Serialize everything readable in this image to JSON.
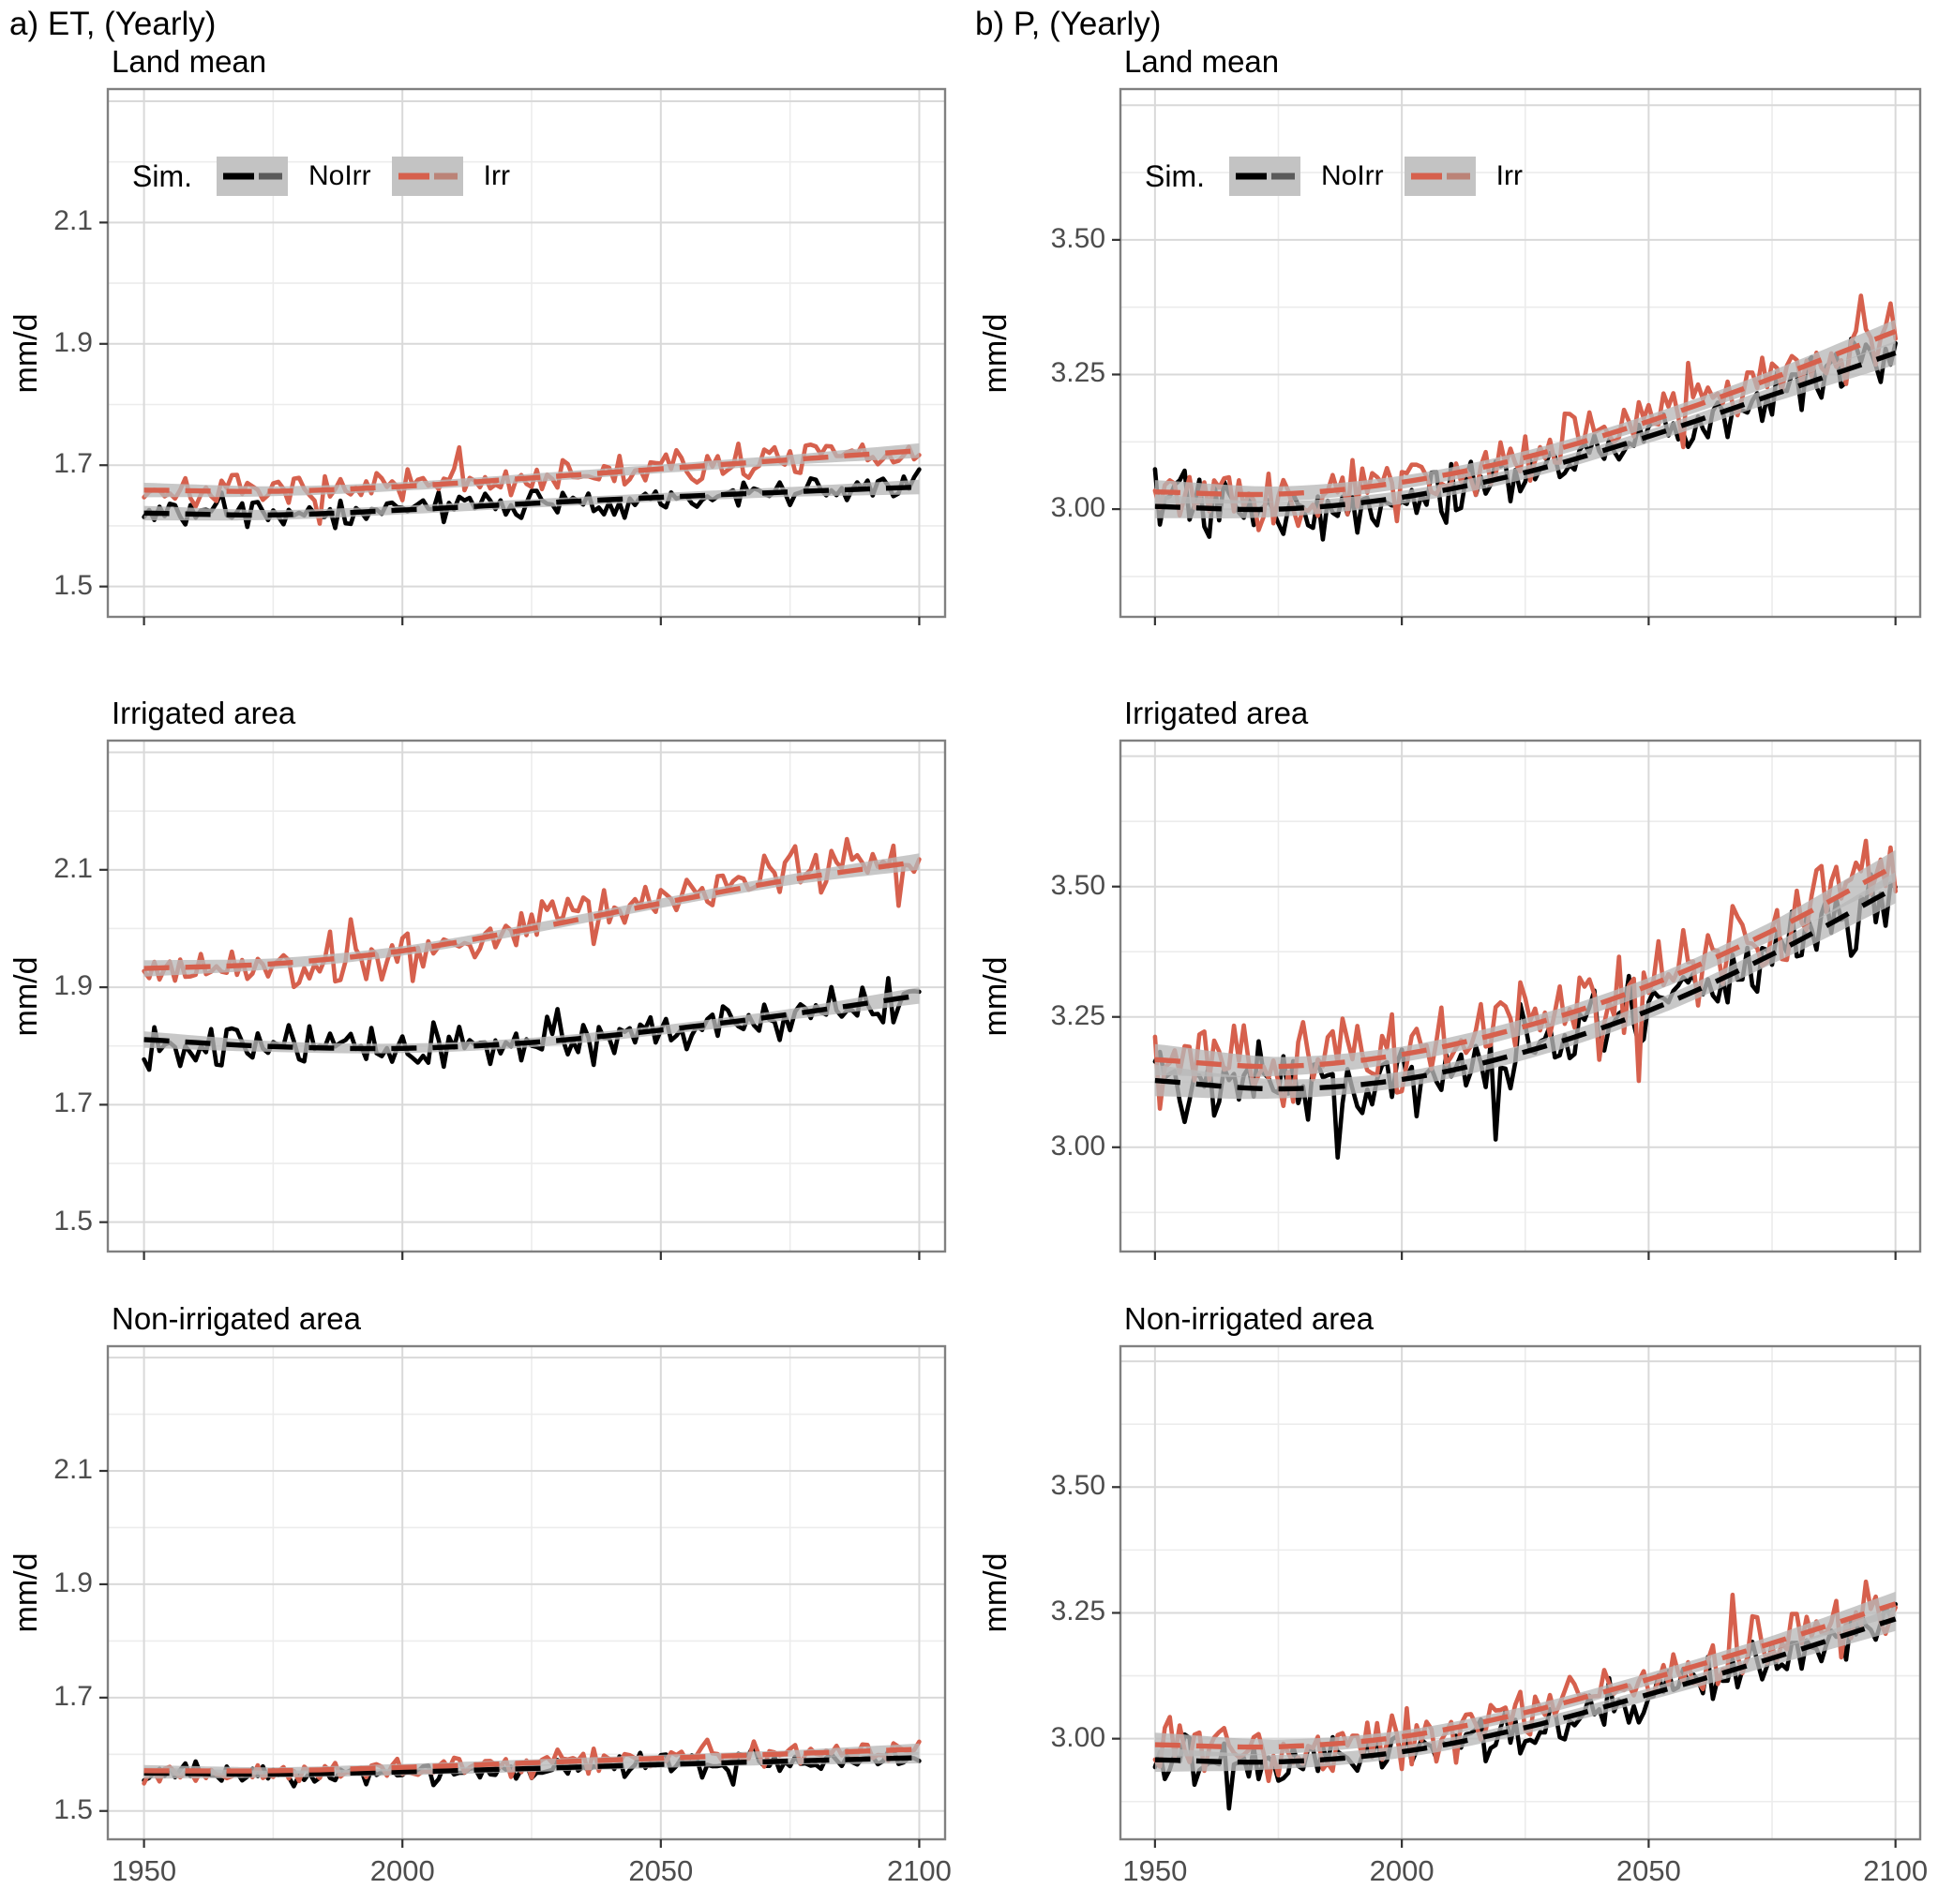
{
  "figure": {
    "column_titles": [
      "a) ET, (Yearly)",
      "b) P, (Yearly)"
    ],
    "y_axis_label": "mm/d",
    "legend": {
      "title": "Sim.",
      "entries": [
        {
          "label": "NoIrr",
          "line_color": "#000000",
          "dash_color": "#5a5a5a"
        },
        {
          "label": "Irr",
          "line_color": "#d6604d",
          "dash_color": "#bb8377"
        }
      ],
      "key_fill": "#c3c3c3"
    },
    "style": {
      "band_color": "#b9b9b9",
      "band_opacity": 0.78,
      "grid_major_color": "#d9d9d9",
      "grid_minor_color": "#ececec",
      "panel_border_color": "#808080",
      "axis_text_color": "#4d4d4d",
      "tick_color": "#333333",
      "background": "#ffffff"
    }
  },
  "chart_data": [
    {
      "id": "et-land-mean",
      "type": "line",
      "column_title": "a) ET, (Yearly)",
      "row_title": "Land mean",
      "col": 0,
      "row": 0,
      "xlabel": "",
      "ylabel": "mm/d",
      "x_range": [
        1943,
        2105
      ],
      "x_minor": [
        1975,
        2025,
        2075
      ],
      "x_ticks": [
        {
          "v": 1950,
          "label": "1950"
        },
        {
          "v": 2000,
          "label": "2000"
        },
        {
          "v": 2050,
          "label": "2050"
        },
        {
          "v": 2100,
          "label": "2100"
        }
      ],
      "y_range": [
        1.45,
        2.32
      ],
      "y_minor": [
        1.6,
        1.8,
        2.0,
        2.2
      ],
      "y_grid_unlabeled": [
        2.3
      ],
      "y_ticks": [
        {
          "v": 1.5,
          "label": "1.5"
        },
        {
          "v": 1.7,
          "label": "1.7"
        },
        {
          "v": 1.9,
          "label": "1.9"
        },
        {
          "v": 2.1,
          "label": "2.1"
        }
      ],
      "show_legend": true,
      "show_x_labels": false,
      "trend_x": [
        1950,
        1975,
        2000,
        2025,
        2050,
        2075,
        2100
      ],
      "series": [
        {
          "name": "NoIrr",
          "color": "#000000",
          "trend_y": [
            1.621,
            1.618,
            1.626,
            1.637,
            1.647,
            1.656,
            1.664
          ],
          "band": [
            0.012,
            0.008,
            0.007,
            0.007,
            0.007,
            0.008,
            0.012
          ],
          "noise_amp": 0.017,
          "seed": 3
        },
        {
          "name": "Irr",
          "color": "#d6604d",
          "trend_y": [
            1.659,
            1.657,
            1.665,
            1.679,
            1.694,
            1.709,
            1.724
          ],
          "band": [
            0.012,
            0.008,
            0.007,
            0.007,
            0.007,
            0.008,
            0.012
          ],
          "noise_amp": 0.02,
          "seed": 7
        }
      ]
    },
    {
      "id": "p-land-mean",
      "type": "line",
      "column_title": "b) P, (Yearly)",
      "row_title": "Land mean",
      "col": 1,
      "row": 0,
      "xlabel": "",
      "ylabel": "mm/d",
      "x_range": [
        1943,
        2105
      ],
      "x_minor": [
        1975,
        2025,
        2075
      ],
      "x_ticks": [
        {
          "v": 1950,
          "label": "1950"
        },
        {
          "v": 2000,
          "label": "2000"
        },
        {
          "v": 2050,
          "label": "2050"
        },
        {
          "v": 2100,
          "label": "2100"
        }
      ],
      "y_range": [
        2.8,
        3.78
      ],
      "y_minor": [
        2.875,
        3.125,
        3.375,
        3.625
      ],
      "y_grid_unlabeled": [
        3.75
      ],
      "y_ticks": [
        {
          "v": 3.0,
          "label": "3.00"
        },
        {
          "v": 3.25,
          "label": "3.25"
        },
        {
          "v": 3.5,
          "label": "3.50"
        }
      ],
      "show_legend": true,
      "show_x_labels": false,
      "trend_x": [
        1950,
        1975,
        2000,
        2025,
        2050,
        2075,
        2100
      ],
      "series": [
        {
          "name": "NoIrr",
          "color": "#000000",
          "trend_y": [
            3.005,
            3.0,
            3.022,
            3.068,
            3.135,
            3.212,
            3.29
          ],
          "band": [
            0.022,
            0.014,
            0.012,
            0.012,
            0.012,
            0.014,
            0.022
          ],
          "noise_amp": 0.038,
          "seed": 31
        },
        {
          "name": "Irr",
          "color": "#d6604d",
          "trend_y": [
            3.032,
            3.028,
            3.05,
            3.096,
            3.163,
            3.243,
            3.33
          ],
          "band": [
            0.022,
            0.014,
            0.012,
            0.012,
            0.012,
            0.014,
            0.022
          ],
          "noise_amp": 0.042,
          "seed": 37
        }
      ]
    },
    {
      "id": "et-irrigated-area",
      "type": "line",
      "column_title": "a) ET, (Yearly)",
      "row_title": "Irrigated area",
      "col": 0,
      "row": 1,
      "xlabel": "",
      "ylabel": "mm/d",
      "x_range": [
        1943,
        2105
      ],
      "x_minor": [
        1975,
        2025,
        2075
      ],
      "x_ticks": [
        {
          "v": 1950,
          "label": "1950"
        },
        {
          "v": 2000,
          "label": "2000"
        },
        {
          "v": 2050,
          "label": "2050"
        },
        {
          "v": 2100,
          "label": "2100"
        }
      ],
      "y_range": [
        1.45,
        2.32
      ],
      "y_minor": [
        1.6,
        1.8,
        2.0,
        2.2
      ],
      "y_grid_unlabeled": [
        2.3
      ],
      "y_ticks": [
        {
          "v": 1.5,
          "label": "1.5"
        },
        {
          "v": 1.7,
          "label": "1.7"
        },
        {
          "v": 1.9,
          "label": "1.9"
        },
        {
          "v": 2.1,
          "label": "2.1"
        }
      ],
      "show_legend": false,
      "show_x_labels": false,
      "trend_x": [
        1950,
        1975,
        2000,
        2025,
        2050,
        2075,
        2100
      ],
      "series": [
        {
          "name": "NoIrr",
          "color": "#000000",
          "trend_y": [
            1.811,
            1.799,
            1.796,
            1.806,
            1.827,
            1.854,
            1.886
          ],
          "band": [
            0.014,
            0.009,
            0.008,
            0.008,
            0.008,
            0.009,
            0.014
          ],
          "noise_amp": 0.028,
          "seed": 13
        },
        {
          "name": "Irr",
          "color": "#d6604d",
          "trend_y": [
            1.932,
            1.94,
            1.962,
            2.0,
            2.043,
            2.083,
            2.114
          ],
          "band": [
            0.014,
            0.009,
            0.008,
            0.008,
            0.008,
            0.009,
            0.014
          ],
          "noise_amp": 0.034,
          "seed": 17
        }
      ]
    },
    {
      "id": "p-irrigated-area",
      "type": "line",
      "column_title": "b) P, (Yearly)",
      "row_title": "Irrigated area",
      "col": 1,
      "row": 1,
      "xlabel": "",
      "ylabel": "mm/d",
      "x_range": [
        1943,
        2105
      ],
      "x_minor": [
        1975,
        2025,
        2075
      ],
      "x_ticks": [
        {
          "v": 1950,
          "label": "1950"
        },
        {
          "v": 2000,
          "label": "2000"
        },
        {
          "v": 2050,
          "label": "2050"
        },
        {
          "v": 2100,
          "label": "2100"
        }
      ],
      "y_range": [
        2.8,
        3.78
      ],
      "y_minor": [
        2.875,
        3.125,
        3.375,
        3.625
      ],
      "y_grid_unlabeled": [
        3.75
      ],
      "y_ticks": [
        {
          "v": 3.0,
          "label": "3.00"
        },
        {
          "v": 3.25,
          "label": "3.25"
        },
        {
          "v": 3.5,
          "label": "3.50"
        }
      ],
      "show_legend": false,
      "show_x_labels": false,
      "trend_x": [
        1950,
        1975,
        2000,
        2025,
        2050,
        2075,
        2100
      ],
      "series": [
        {
          "name": "NoIrr",
          "color": "#000000",
          "trend_y": [
            3.128,
            3.112,
            3.13,
            3.183,
            3.262,
            3.37,
            3.498
          ],
          "band": [
            0.03,
            0.018,
            0.015,
            0.015,
            0.015,
            0.018,
            0.03
          ],
          "noise_amp": 0.055,
          "seed": 41
        },
        {
          "name": "Irr",
          "color": "#d6604d",
          "trend_y": [
            3.168,
            3.155,
            3.178,
            3.232,
            3.31,
            3.415,
            3.54
          ],
          "band": [
            0.03,
            0.018,
            0.015,
            0.015,
            0.015,
            0.018,
            0.03
          ],
          "noise_amp": 0.06,
          "seed": 43
        }
      ]
    },
    {
      "id": "et-non-irrigated-area",
      "type": "line",
      "column_title": "a) ET, (Yearly)",
      "row_title": "Non-irrigated area",
      "col": 0,
      "row": 2,
      "xlabel": "",
      "ylabel": "mm/d",
      "x_range": [
        1943,
        2105
      ],
      "x_minor": [
        1975,
        2025,
        2075
      ],
      "x_ticks": [
        {
          "v": 1950,
          "label": "1950"
        },
        {
          "v": 2000,
          "label": "2000"
        },
        {
          "v": 2050,
          "label": "2050"
        },
        {
          "v": 2100,
          "label": "2100"
        }
      ],
      "y_range": [
        1.45,
        2.32
      ],
      "y_minor": [
        1.6,
        1.8,
        2.0,
        2.2
      ],
      "y_grid_unlabeled": [
        2.3
      ],
      "y_ticks": [
        {
          "v": 1.5,
          "label": "1.5"
        },
        {
          "v": 1.7,
          "label": "1.7"
        },
        {
          "v": 1.9,
          "label": "1.9"
        },
        {
          "v": 2.1,
          "label": "2.1"
        }
      ],
      "show_legend": false,
      "show_x_labels": true,
      "trend_x": [
        1950,
        1975,
        2000,
        2025,
        2050,
        2075,
        2100
      ],
      "series": [
        {
          "name": "NoIrr",
          "color": "#000000",
          "trend_y": [
            1.567,
            1.565,
            1.569,
            1.575,
            1.582,
            1.588,
            1.594
          ],
          "band": [
            0.01,
            0.006,
            0.006,
            0.006,
            0.006,
            0.006,
            0.01
          ],
          "noise_amp": 0.014,
          "seed": 23
        },
        {
          "name": "Irr",
          "color": "#d6604d",
          "trend_y": [
            1.571,
            1.571,
            1.577,
            1.585,
            1.593,
            1.601,
            1.609
          ],
          "band": [
            0.01,
            0.006,
            0.006,
            0.006,
            0.006,
            0.006,
            0.01
          ],
          "noise_amp": 0.016,
          "seed": 27
        }
      ]
    },
    {
      "id": "p-non-irrigated-area",
      "type": "line",
      "column_title": "b) P, (Yearly)",
      "row_title": "Non-irrigated area",
      "col": 1,
      "row": 2,
      "xlabel": "",
      "ylabel": "mm/d",
      "x_range": [
        1943,
        2105
      ],
      "x_minor": [
        1975,
        2025,
        2075
      ],
      "x_ticks": [
        {
          "v": 1950,
          "label": "1950"
        },
        {
          "v": 2000,
          "label": "2000"
        },
        {
          "v": 2050,
          "label": "2050"
        },
        {
          "v": 2100,
          "label": "2100"
        }
      ],
      "y_range": [
        2.8,
        3.78
      ],
      "y_minor": [
        2.875,
        3.125,
        3.375,
        3.625
      ],
      "y_grid_unlabeled": [
        3.75
      ],
      "y_ticks": [
        {
          "v": 3.0,
          "label": "3.00"
        },
        {
          "v": 3.25,
          "label": "3.25"
        },
        {
          "v": 3.5,
          "label": "3.50"
        }
      ],
      "show_legend": false,
      "show_x_labels": true,
      "trend_x": [
        1950,
        1975,
        2000,
        2025,
        2050,
        2075,
        2100
      ],
      "series": [
        {
          "name": "NoIrr",
          "color": "#000000",
          "trend_y": [
            2.958,
            2.954,
            2.974,
            3.022,
            3.088,
            3.16,
            3.238
          ],
          "band": [
            0.024,
            0.014,
            0.012,
            0.012,
            0.012,
            0.014,
            0.024
          ],
          "noise_amp": 0.036,
          "seed": 47
        },
        {
          "name": "Irr",
          "color": "#d6604d",
          "trend_y": [
            2.988,
            2.984,
            3.004,
            3.052,
            3.118,
            3.19,
            3.268
          ],
          "band": [
            0.024,
            0.014,
            0.012,
            0.012,
            0.012,
            0.014,
            0.024
          ],
          "noise_amp": 0.04,
          "seed": 53
        }
      ]
    }
  ]
}
